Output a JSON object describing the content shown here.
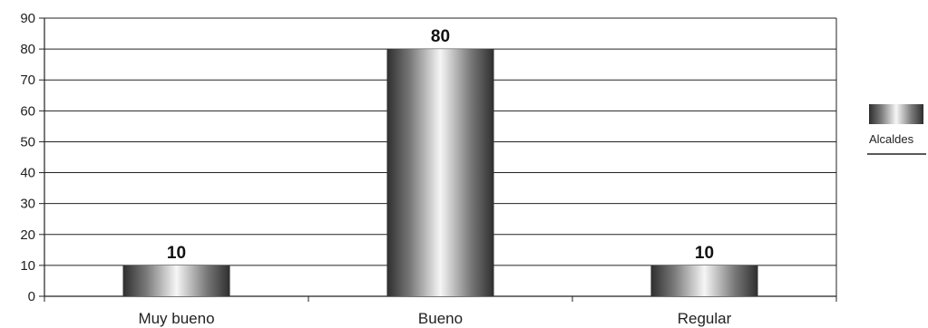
{
  "chart_data": {
    "type": "bar",
    "categories": [
      "Muy bueno",
      "Bueno",
      "Regular"
    ],
    "series": [
      {
        "name": "Alcaldes",
        "values": [
          10,
          80,
          10
        ]
      }
    ],
    "data_labels": [
      "10",
      "80",
      "10"
    ],
    "ylim": [
      0,
      90
    ],
    "yticks": [
      0,
      10,
      20,
      30,
      40,
      50,
      60,
      70,
      80,
      90
    ],
    "grid": true,
    "legend": "right",
    "title": "",
    "xlabel": "",
    "ylabel": ""
  }
}
